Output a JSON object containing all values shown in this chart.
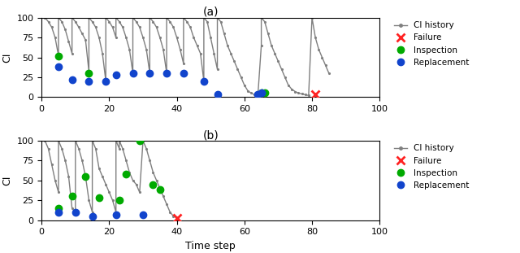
{
  "title_a": "(a)",
  "title_b": "(b)",
  "xlabel": "Time step",
  "ylabel": "CI",
  "xlim": [
    0,
    100
  ],
  "ylim": [
    0,
    100
  ],
  "line_color": "#7f7f7f",
  "line_linewidth": 1.0,
  "failure_color": "#ff2222",
  "inspection_color": "#00aa00",
  "replacement_color": "#1144cc",
  "marker_size": 7,
  "legend_entries": [
    "CI history",
    "Failure",
    "Inspection",
    "Replacement"
  ],
  "a_pts": [
    [
      1,
      100
    ],
    [
      2,
      95
    ],
    [
      3,
      88
    ],
    [
      4,
      75
    ],
    [
      5,
      52
    ],
    [
      5,
      100
    ],
    [
      6,
      95
    ],
    [
      7,
      85
    ],
    [
      8,
      70
    ],
    [
      9,
      55
    ],
    [
      9,
      100
    ],
    [
      10,
      95
    ],
    [
      11,
      88
    ],
    [
      12,
      80
    ],
    [
      13,
      72
    ],
    [
      14,
      32
    ],
    [
      14,
      100
    ],
    [
      15,
      95
    ],
    [
      16,
      88
    ],
    [
      17,
      75
    ],
    [
      18,
      55
    ],
    [
      19,
      20
    ],
    [
      19,
      100
    ],
    [
      20,
      95
    ],
    [
      21,
      88
    ],
    [
      22,
      75
    ],
    [
      22,
      100
    ],
    [
      23,
      95
    ],
    [
      24,
      88
    ],
    [
      25,
      75
    ],
    [
      26,
      60
    ],
    [
      27,
      30
    ],
    [
      27,
      100
    ],
    [
      28,
      95
    ],
    [
      29,
      88
    ],
    [
      30,
      75
    ],
    [
      31,
      60
    ],
    [
      32,
      30
    ],
    [
      32,
      100
    ],
    [
      33,
      95
    ],
    [
      34,
      88
    ],
    [
      35,
      75
    ],
    [
      36,
      60
    ],
    [
      37,
      30
    ],
    [
      37,
      100
    ],
    [
      38,
      95
    ],
    [
      39,
      88
    ],
    [
      40,
      75
    ],
    [
      41,
      60
    ],
    [
      42,
      42
    ],
    [
      42,
      100
    ],
    [
      43,
      95
    ],
    [
      44,
      88
    ],
    [
      45,
      75
    ],
    [
      46,
      65
    ],
    [
      47,
      55
    ],
    [
      48,
      20
    ],
    [
      48,
      100
    ],
    [
      49,
      95
    ],
    [
      50,
      75
    ],
    [
      51,
      55
    ],
    [
      52,
      35
    ],
    [
      52,
      100
    ],
    [
      53,
      95
    ],
    [
      54,
      80
    ],
    [
      55,
      65
    ],
    [
      56,
      55
    ],
    [
      57,
      45
    ],
    [
      58,
      35
    ],
    [
      59,
      25
    ],
    [
      60,
      15
    ],
    [
      61,
      8
    ],
    [
      62,
      5
    ],
    [
      63,
      3
    ],
    [
      64,
      3
    ],
    [
      65,
      65
    ],
    [
      65,
      100
    ],
    [
      66,
      95
    ],
    [
      67,
      80
    ],
    [
      68,
      65
    ],
    [
      69,
      55
    ],
    [
      70,
      45
    ],
    [
      71,
      35
    ],
    [
      72,
      25
    ],
    [
      73,
      15
    ],
    [
      74,
      10
    ],
    [
      75,
      7
    ],
    [
      76,
      5
    ],
    [
      77,
      4
    ],
    [
      78,
      3
    ],
    [
      79,
      2
    ],
    [
      80,
      100
    ],
    [
      81,
      75
    ],
    [
      82,
      60
    ],
    [
      83,
      50
    ],
    [
      84,
      40
    ],
    [
      85,
      30
    ]
  ],
  "a_failures": [
    [
      81,
      3
    ]
  ],
  "a_inspections": [
    [
      5,
      52
    ],
    [
      14,
      30
    ],
    [
      65,
      5
    ],
    [
      66,
      5
    ]
  ],
  "a_replacements": [
    [
      5,
      38
    ],
    [
      9,
      22
    ],
    [
      14,
      20
    ],
    [
      19,
      20
    ],
    [
      22,
      28
    ],
    [
      27,
      30
    ],
    [
      32,
      30
    ],
    [
      37,
      30
    ],
    [
      42,
      30
    ],
    [
      48,
      20
    ],
    [
      52,
      3
    ],
    [
      64,
      3
    ],
    [
      65,
      5
    ]
  ],
  "b_pts": [
    [
      1,
      100
    ],
    [
      2,
      90
    ],
    [
      3,
      70
    ],
    [
      4,
      50
    ],
    [
      5,
      35
    ],
    [
      5,
      100
    ],
    [
      6,
      90
    ],
    [
      7,
      75
    ],
    [
      8,
      55
    ],
    [
      9,
      15
    ],
    [
      10,
      10
    ],
    [
      10,
      100
    ],
    [
      11,
      90
    ],
    [
      12,
      75
    ],
    [
      13,
      55
    ],
    [
      14,
      25
    ],
    [
      15,
      10
    ],
    [
      15,
      100
    ],
    [
      16,
      90
    ],
    [
      17,
      65
    ],
    [
      18,
      55
    ],
    [
      19,
      45
    ],
    [
      20,
      35
    ],
    [
      21,
      25
    ],
    [
      22,
      10
    ],
    [
      22,
      100
    ],
    [
      23,
      90
    ],
    [
      23,
      100
    ],
    [
      24,
      90
    ],
    [
      25,
      75
    ],
    [
      26,
      60
    ],
    [
      27,
      50
    ],
    [
      28,
      45
    ],
    [
      29,
      35
    ],
    [
      30,
      100
    ],
    [
      31,
      90
    ],
    [
      32,
      75
    ],
    [
      33,
      60
    ],
    [
      34,
      50
    ],
    [
      35,
      40
    ],
    [
      36,
      30
    ],
    [
      37,
      20
    ],
    [
      38,
      10
    ],
    [
      39,
      5
    ],
    [
      40,
      3
    ]
  ],
  "b_failures": [
    [
      40,
      3
    ]
  ],
  "b_inspections": [
    [
      5,
      15
    ],
    [
      9,
      30
    ],
    [
      13,
      55
    ],
    [
      17,
      28
    ],
    [
      23,
      25
    ],
    [
      25,
      58
    ],
    [
      29,
      100
    ],
    [
      33,
      45
    ],
    [
      35,
      38
    ]
  ],
  "b_replacements": [
    [
      5,
      10
    ],
    [
      10,
      10
    ],
    [
      15,
      5
    ],
    [
      22,
      7
    ],
    [
      30,
      7
    ]
  ]
}
